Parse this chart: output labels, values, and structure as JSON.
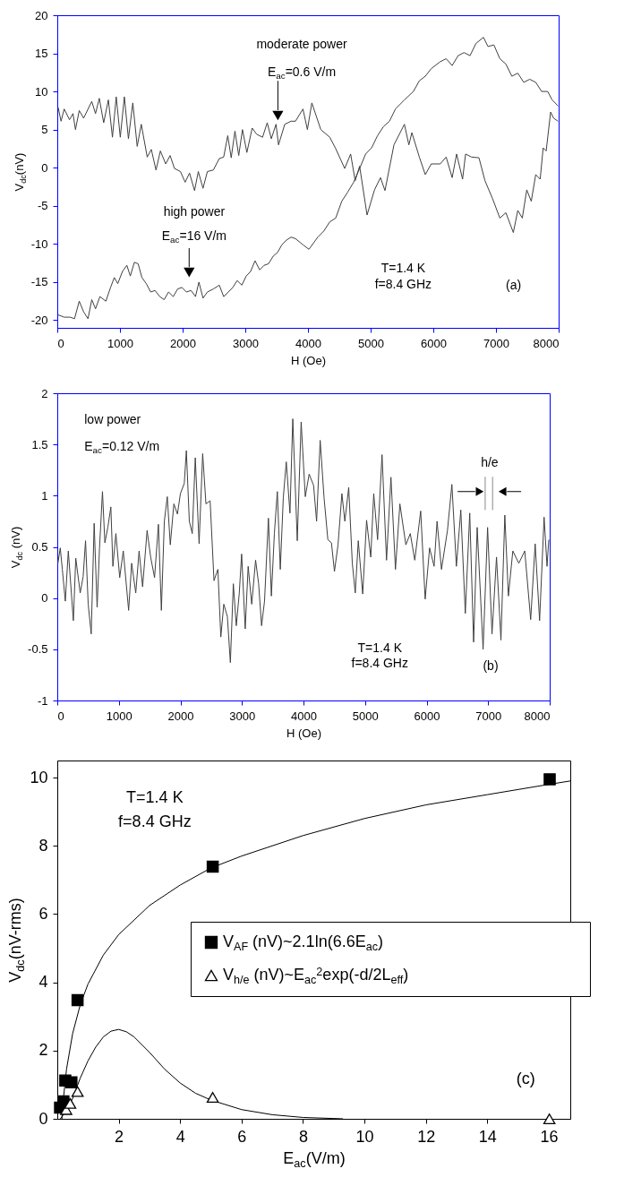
{
  "chart_data": [
    {
      "type": "line",
      "xlabel": "H (Oe)",
      "ylabel": "V$_{dc}$(nV)",
      "xlim": [
        0,
        8000
      ],
      "ylim": [
        -21,
        20
      ],
      "xticks": [
        0,
        1000,
        2000,
        3000,
        4000,
        5000,
        6000,
        7000,
        8000
      ],
      "yticks": [
        -20,
        -15,
        -10,
        -5,
        0,
        5,
        10,
        15,
        20
      ],
      "series": [
        {
          "color": "#404040",
          "x": [
            14,
            60,
            110,
            195,
            250,
            290,
            350,
            420,
            550,
            610,
            670,
            740,
            815,
            880,
            940,
            1005,
            1070,
            1135,
            1205,
            1275,
            1340,
            1435,
            1500,
            1575,
            1645,
            1730,
            1800,
            1870,
            1965,
            2040,
            2110,
            2190,
            2250,
            2325,
            2395,
            2490,
            2585,
            2655,
            2720,
            2775,
            2835,
            2895,
            2955,
            3025,
            3110,
            3180,
            3275,
            3350,
            3415,
            3490,
            3530,
            3630,
            3730,
            3800,
            3920,
            3991,
            4062,
            4205,
            4348,
            4443,
            4586,
            4681,
            4753,
            4824,
            4943,
            5062,
            5157,
            5229,
            5372,
            5539,
            5610,
            5658,
            5777,
            5872,
            5967,
            6110,
            6205,
            6301,
            6372,
            6467,
            6515,
            6610,
            6729,
            6824,
            6943,
            7062,
            7158,
            7277,
            7348,
            7420,
            7491,
            7563,
            7634,
            7705,
            7753,
            7801,
            7872,
            7920,
            7990
          ],
          "values": [
            7.9,
            6.1,
            7.7,
            6.3,
            7.1,
            5.0,
            7.5,
            6.5,
            8.7,
            7.1,
            9.1,
            5.9,
            8.9,
            4.0,
            9.3,
            4.0,
            9.3,
            3.8,
            8.5,
            2.8,
            5.7,
            1.4,
            2.4,
            -0.3,
            2.2,
            0.5,
            1.6,
            -0.1,
            -0.5,
            -1.9,
            -0.7,
            -3.0,
            -0.5,
            -2.7,
            -0.5,
            -0.3,
            1.2,
            1.4,
            4.2,
            1.3,
            4.8,
            1.6,
            5.0,
            2.0,
            5.2,
            4.4,
            4.0,
            5.9,
            3.8,
            5.7,
            3.0,
            5.7,
            6.1,
            6.1,
            7.7,
            5.0,
            8.5,
            5.0,
            4.0,
            2.5,
            -0.1,
            1.8,
            -1.7,
            0.2,
            -6.2,
            -2.9,
            -1.3,
            -3.0,
            3.0,
            5.7,
            3.0,
            4.6,
            1.4,
            -0.9,
            0.5,
            0.5,
            1.4,
            -1.3,
            1.8,
            -1.5,
            1.8,
            1.4,
            1.3,
            -1.7,
            -4.0,
            -6.6,
            -5.9,
            -8.5,
            -5.6,
            -6.6,
            -2.9,
            -4.4,
            -0.9,
            -1.5,
            2.6,
            2.2,
            7.3,
            6.5,
            6.1
          ]
        },
        {
          "color": "#404040",
          "x": [
            14,
            110,
            205,
            275,
            350,
            420,
            490,
            550,
            610,
            680,
            775,
            850,
            910,
            965,
            1040,
            1110,
            1165,
            1230,
            1290,
            1350,
            1420,
            1490,
            1560,
            1635,
            1705,
            1775,
            1850,
            1920,
            1990,
            2060,
            2135,
            2205,
            2260,
            2325,
            2395,
            2490,
            2585,
            2655,
            2730,
            2800,
            2870,
            2945,
            3015,
            3085,
            3155,
            3230,
            3300,
            3370,
            3445,
            3515,
            3585,
            3655,
            3730,
            3800,
            3920,
            4015,
            4157,
            4253,
            4348,
            4443,
            4539,
            4634,
            4729,
            4824,
            4920,
            5015,
            5110,
            5205,
            5300,
            5396,
            5539,
            5682,
            5777,
            5872,
            5967,
            6110,
            6205,
            6301,
            6396,
            6491,
            6586,
            6681,
            6800,
            6872,
            6967,
            7062,
            7158,
            7253,
            7348,
            7443,
            7539,
            7634,
            7729,
            7825,
            7896,
            7991
          ],
          "values": [
            -19.3,
            -19.6,
            -19.6,
            -19.8,
            -17.5,
            -18.9,
            -19.8,
            -17.3,
            -18.5,
            -16.9,
            -17.5,
            -15.7,
            -14.4,
            -15.2,
            -13.6,
            -12.8,
            -14.2,
            -12.4,
            -12.6,
            -14.4,
            -15.2,
            -16.3,
            -16.1,
            -16.9,
            -17.3,
            -16.3,
            -16.9,
            -15.9,
            -15.7,
            -16.3,
            -16.1,
            -16.9,
            -15.0,
            -17.1,
            -16.3,
            -15.9,
            -15.4,
            -16.9,
            -16.3,
            -15.7,
            -14.8,
            -15.4,
            -14.2,
            -13.6,
            -12.2,
            -13.4,
            -12.8,
            -12.6,
            -11.6,
            -11.1,
            -10.1,
            -9.5,
            -9.1,
            -9.3,
            -10.1,
            -10.7,
            -9.1,
            -8.3,
            -7.1,
            -6.6,
            -4.4,
            -3.2,
            -1.9,
            -0.1,
            1.8,
            2.6,
            4.2,
            5.4,
            6.1,
            7.7,
            8.9,
            10.0,
            11.4,
            12.0,
            13.0,
            13.9,
            14.3,
            13.4,
            14.7,
            15.1,
            14.7,
            16.3,
            17.1,
            15.9,
            16.1,
            14.3,
            13.6,
            12.0,
            12.4,
            11.2,
            11.6,
            11.2,
            10.0,
            10.0,
            8.9,
            8.1
          ]
        }
      ],
      "annotations": [
        "moderate power\nE$_{ac}$=0.6 V/m",
        "high power\nE$_{ac}$=16 V/m",
        "T=1.4 K\nf=8.4 GHz",
        "(a)"
      ]
    },
    {
      "type": "line",
      "xlabel": "H (Oe)",
      "ylabel": "V$_{dc}$ (nV)",
      "xlim": [
        0,
        8000
      ],
      "ylim": [
        -1,
        2
      ],
      "xticks": [
        0,
        1000,
        2000,
        3000,
        4000,
        5000,
        6000,
        7000,
        8000
      ],
      "yticks": [
        -1,
        -0.5,
        0,
        0.5,
        1,
        1.5,
        2
      ],
      "series": [
        {
          "color": "#404040",
          "x": [
            10,
            48,
            82,
            130,
            179,
            261,
            300,
            372,
            420,
            459,
            502,
            551,
            599,
            647,
            686,
            734,
            773,
            821,
            870,
            903,
            952,
            1014,
            1072,
            1159,
            1208,
            1275,
            1329,
            1386,
            1459,
            1517,
            1580,
            1643,
            1691,
            1739,
            1787,
            1836,
            1894,
            1952,
            2000,
            2063,
            2097,
            2145,
            2193,
            2242,
            2304,
            2362,
            2415,
            2483,
            2546,
            2609,
            2657,
            2705,
            2763,
            2812,
            2860,
            2908,
            2957,
            2995,
            3053,
            3101,
            3159,
            3222,
            3271,
            3319,
            3367,
            3430,
            3478,
            3527,
            3575,
            3623,
            3672,
            3720,
            3780,
            3826,
            3899,
            3962,
            4029,
            4092,
            4164,
            4213,
            4271,
            4334,
            4396,
            4454,
            4503,
            4561,
            4624,
            4672,
            4735,
            4793,
            4841,
            4890,
            4962,
            5025,
            5093,
            5141,
            5204,
            5276,
            5349,
            5421,
            5494,
            5566,
            5663,
            5735,
            5808,
            5904,
            5977,
            6049,
            6122,
            6170,
            6242,
            6339,
            6411,
            6484,
            6556,
            6629,
            6701,
            6764,
            6822,
            6880,
            6918,
            6991,
            7063,
            7136,
            7208,
            7271,
            7329,
            7401,
            7498,
            7595,
            7691,
            7764,
            7836,
            7909,
            7957,
            7985
          ],
          "values": [
            0.34,
            0.49,
            0.28,
            -0.03,
            0.46,
            -0.22,
            0.39,
            0.05,
            0.21,
            0.56,
            -0.06,
            -0.35,
            0.73,
            -0.09,
            0.49,
            1.04,
            0.54,
            0.69,
            0.89,
            0.31,
            0.63,
            0.2,
            0.46,
            -0.12,
            0.34,
            0.05,
            0.46,
            0.11,
            0.66,
            0.4,
            0.2,
            0.72,
            -0.12,
            0.75,
            0.99,
            0.52,
            0.92,
            0.82,
            1.02,
            1.12,
            1.44,
            0.75,
            0.63,
            1.37,
            0.53,
            1.41,
            0.92,
            0.95,
            0.17,
            0.28,
            -0.38,
            -0.06,
            -0.18,
            -0.63,
            0.14,
            -0.27,
            0.05,
            0.43,
            -0.3,
            0.31,
            -0.06,
            0.37,
            0.14,
            -0.27,
            -0.03,
            0.78,
            0.02,
            0.63,
            1.04,
            0.28,
            0.98,
            1.33,
            0.83,
            1.75,
            0.56,
            1.72,
            0.99,
            1.21,
            1.1,
            0.75,
            1.54,
            0.98,
            0.57,
            0.54,
            0.26,
            0.52,
            1.02,
            0.75,
            1.08,
            0.34,
            0.05,
            0.56,
            0.04,
            0.76,
            0.4,
            1.02,
            0.57,
            1.4,
            0.37,
            1.18,
            0.28,
            0.92,
            0.52,
            0.63,
            0.37,
            0.85,
            -0.01,
            0.49,
            0.31,
            0.75,
            0.28,
            0.66,
            1.11,
            0.31,
            0.86,
            -0.15,
            0.83,
            -0.43,
            0.69,
            -0.03,
            -0.5,
            0.69,
            -0.35,
            0.4,
            -0.41,
            0.81,
            0.02,
            0.46,
            0.34,
            0.46,
            -0.21,
            0.53,
            -0.22,
            0.79,
            0.31,
            0.57
          ]
        }
      ],
      "annotations": [
        "low power\nE$_{ac}$=0.12 V/m",
        "h/e",
        "T=1.4 K\nf=8.4 GHz",
        "(b)"
      ]
    },
    {
      "type": "scatter",
      "xlabel": "E$_{ac}$(V/m)",
      "ylabel": "V$_{dc}$(nV-rms)",
      "xlim": [
        0,
        16.7
      ],
      "ylim": [
        0,
        10.5
      ],
      "xticks": [
        2,
        4,
        6,
        8,
        10,
        12,
        14,
        16
      ],
      "yticks": [
        0,
        2,
        4,
        6,
        8,
        10
      ],
      "legend": "right",
      "series": [
        {
          "type": "line",
          "color": "#000000",
          "x": [
            0.15,
            0.2,
            0.3,
            0.5,
            0.75,
            1,
            1.5,
            2,
            3,
            4,
            5,
            6,
            8,
            10,
            12,
            14,
            16,
            16.7
          ],
          "values": [
            0,
            0.6,
            1.45,
            2.5,
            3.35,
            3.95,
            4.8,
            5.4,
            6.25,
            6.85,
            7.35,
            7.7,
            8.3,
            8.8,
            9.2,
            9.5,
            9.8,
            9.9
          ]
        },
        {
          "type": "line",
          "color": "#000000",
          "x": [
            0.1,
            0.3,
            0.5,
            0.75,
            1,
            1.25,
            1.5,
            1.75,
            2,
            2.25,
            2.5,
            3,
            3.5,
            4,
            4.5,
            5,
            6,
            7,
            8,
            9,
            9.3
          ],
          "values": [
            0,
            0.25,
            0.6,
            1.2,
            1.7,
            2.1,
            2.4,
            2.57,
            2.62,
            2.55,
            2.4,
            1.95,
            1.45,
            1.05,
            0.75,
            0.55,
            0.27,
            0.12,
            0.04,
            0.01,
            0
          ]
        },
        {
          "name": "V$_{AF}$ (nV)~2.1ln(6.6E$_{ac}$)",
          "marker": "square",
          "color": "#000000",
          "x": [
            0.09,
            0.2,
            0.26,
            0.46,
            0.66,
            5.06,
            16.03
          ],
          "values": [
            0.33,
            0.51,
            1.12,
            1.07,
            3.48,
            7.39,
            9.95
          ]
        },
        {
          "name": "V$_{h/e}$ (nV)~E$_{ac}$$^{2}$exp(-d/2L$_{eff}$)",
          "marker": "triangle",
          "color": "#000000",
          "x": [
            0.29,
            0.42,
            0.66,
            5.06,
            16.02
          ],
          "values": [
            0.27,
            0.45,
            0.8,
            0.63,
            0
          ]
        }
      ],
      "annotations": [
        "T=1.4 K\nf=8.4 GHz",
        "(c)"
      ]
    }
  ]
}
